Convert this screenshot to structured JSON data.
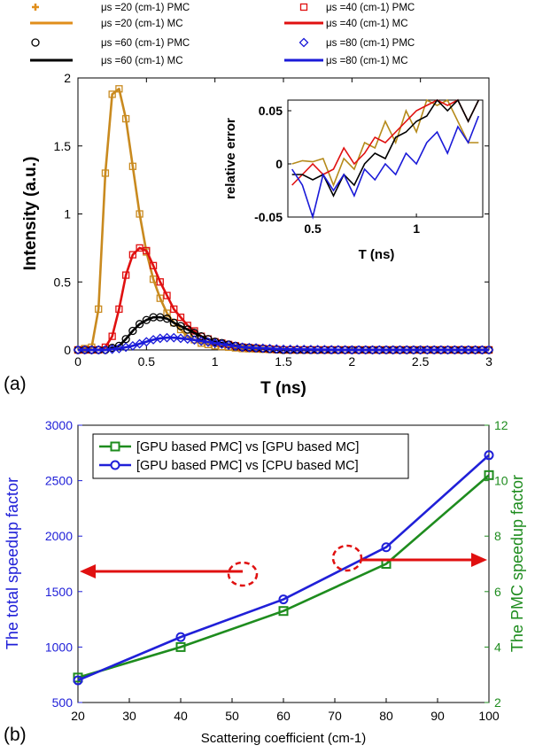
{
  "panel_labels": {
    "a": "(a)",
    "b": "(b)"
  },
  "legend_a": [
    {
      "label": "μs =20 (cm-1) PMC",
      "color": "#e08e1b",
      "marker": "plus"
    },
    {
      "label": "μs =20 (cm-1) MC",
      "color": "#e08e1b",
      "marker": "line"
    },
    {
      "label": "μs =40 (cm-1) PMC",
      "color": "#e01010",
      "marker": "square"
    },
    {
      "label": "μs =40 (cm-1) MC",
      "color": "#e01010",
      "marker": "line"
    },
    {
      "label": "μs =60 (cm-1) PMC",
      "color": "#000000",
      "marker": "circle"
    },
    {
      "label": "μs =60 (cm-1) MC",
      "color": "#000000",
      "marker": "line"
    },
    {
      "label": "μs =80 (cm-1) PMC",
      "color": "#1a1ad8",
      "marker": "diamond"
    },
    {
      "label": "μs =80 (cm-1) MC",
      "color": "#1a1ad8",
      "marker": "line"
    }
  ],
  "chart_data": [
    {
      "type": "line",
      "xlabel": "T (ns)",
      "ylabel": "Intensity (a.u.)",
      "xlim": [
        0,
        3
      ],
      "ylim": [
        0,
        2
      ],
      "x_ticks": [
        "0",
        "0.5",
        "1",
        "1.5",
        "2",
        "2.5",
        "3"
      ],
      "y_ticks": [
        "0",
        "0.5",
        "1",
        "1.5",
        "2"
      ],
      "series": [
        {
          "name": "μs =20 (cm-1)",
          "color": "#c98a1f",
          "x": [
            0,
            0.1,
            0.15,
            0.2,
            0.25,
            0.3,
            0.35,
            0.4,
            0.45,
            0.5,
            0.55,
            0.6,
            0.65,
            0.7,
            0.8,
            0.9,
            1.0,
            1.2,
            1.5,
            2.0,
            2.5,
            3.0
          ],
          "y": [
            0,
            0.02,
            0.3,
            1.3,
            1.88,
            1.92,
            1.7,
            1.35,
            1.0,
            0.72,
            0.52,
            0.38,
            0.27,
            0.2,
            0.1,
            0.05,
            0.03,
            0.01,
            0,
            0,
            0,
            0
          ]
        },
        {
          "name": "μs =40 (cm-1)",
          "color": "#e01010",
          "x": [
            0,
            0.15,
            0.2,
            0.25,
            0.3,
            0.35,
            0.4,
            0.45,
            0.5,
            0.55,
            0.6,
            0.65,
            0.7,
            0.8,
            0.9,
            1.0,
            1.2,
            1.5,
            2.0,
            2.5,
            3.0
          ],
          "y": [
            0,
            0.0,
            0.02,
            0.1,
            0.3,
            0.55,
            0.7,
            0.75,
            0.73,
            0.62,
            0.5,
            0.4,
            0.3,
            0.18,
            0.1,
            0.06,
            0.02,
            0,
            0,
            0,
            0
          ]
        },
        {
          "name": "μs =60 (cm-1)",
          "color": "#000000",
          "x": [
            0,
            0.2,
            0.3,
            0.35,
            0.4,
            0.45,
            0.5,
            0.55,
            0.6,
            0.65,
            0.7,
            0.8,
            0.9,
            1.0,
            1.1,
            1.2,
            1.5,
            2.0,
            2.5,
            3.0
          ],
          "y": [
            0,
            0.0,
            0.03,
            0.08,
            0.14,
            0.19,
            0.22,
            0.24,
            0.24,
            0.23,
            0.2,
            0.15,
            0.1,
            0.06,
            0.04,
            0.02,
            0,
            0,
            0,
            0
          ]
        },
        {
          "name": "μs =80 (cm-1)",
          "color": "#1a1ad8",
          "x": [
            0,
            0.2,
            0.3,
            0.4,
            0.5,
            0.55,
            0.6,
            0.65,
            0.7,
            0.8,
            0.9,
            1.0,
            1.1,
            1.2,
            1.5,
            2.0,
            2.5,
            3.0
          ],
          "y": [
            0,
            0.0,
            0.01,
            0.03,
            0.06,
            0.075,
            0.085,
            0.09,
            0.09,
            0.08,
            0.065,
            0.05,
            0.035,
            0.02,
            0.005,
            0,
            0,
            0
          ]
        }
      ]
    },
    {
      "type": "line",
      "xlabel": "T (ns)",
      "ylabel": "relative error",
      "xlim": [
        0.38,
        1.32
      ],
      "ylim": [
        -0.05,
        0.06
      ],
      "x_ticks": [
        "0.5",
        "1"
      ],
      "y_ticks": [
        "0.05",
        "0",
        "-0.05"
      ],
      "series": [
        {
          "name": "μs =20 (cm-1)",
          "color": "#b58a1a",
          "x": [
            0.4,
            0.45,
            0.5,
            0.55,
            0.6,
            0.65,
            0.7,
            0.75,
            0.8,
            0.85,
            0.9,
            0.95,
            1.0,
            1.05,
            1.1,
            1.15,
            1.2,
            1.25,
            1.3
          ],
          "y": [
            0.0,
            0.003,
            0.002,
            0.005,
            -0.02,
            0.005,
            -0.005,
            0.02,
            0.015,
            0.04,
            0.02,
            0.05,
            0.03,
            0.06,
            0.055,
            0.06,
            0.04,
            0.02,
            0.02
          ]
        },
        {
          "name": "μs =40 (cm-1)",
          "color": "#e01010",
          "x": [
            0.4,
            0.45,
            0.5,
            0.55,
            0.6,
            0.65,
            0.7,
            0.75,
            0.8,
            0.85,
            0.9,
            0.95,
            1.0,
            1.05,
            1.1,
            1.15,
            1.2,
            1.25,
            1.3
          ],
          "y": [
            -0.02,
            -0.01,
            0.0,
            -0.01,
            -0.005,
            0.015,
            0.0,
            0.01,
            0.025,
            0.02,
            0.03,
            0.04,
            0.05,
            0.055,
            0.06,
            0.055,
            0.06,
            0.04,
            0.06
          ]
        },
        {
          "name": "μs =60 (cm-1)",
          "color": "#000000",
          "x": [
            0.4,
            0.45,
            0.5,
            0.55,
            0.6,
            0.65,
            0.7,
            0.75,
            0.8,
            0.85,
            0.9,
            0.95,
            1.0,
            1.05,
            1.1,
            1.15,
            1.2,
            1.25,
            1.3
          ],
          "y": [
            -0.01,
            -0.01,
            -0.015,
            -0.01,
            -0.03,
            -0.01,
            -0.02,
            0.0,
            0.01,
            0.005,
            0.025,
            0.03,
            0.04,
            0.045,
            0.06,
            0.05,
            0.06,
            0.04,
            0.06
          ]
        },
        {
          "name": "μs =80 (cm-1)",
          "color": "#1a1ad8",
          "x": [
            0.4,
            0.45,
            0.5,
            0.55,
            0.6,
            0.65,
            0.7,
            0.75,
            0.8,
            0.85,
            0.9,
            0.95,
            1.0,
            1.05,
            1.1,
            1.15,
            1.2,
            1.25,
            1.3
          ],
          "y": [
            -0.005,
            -0.02,
            -0.05,
            -0.01,
            -0.025,
            -0.01,
            -0.03,
            -0.005,
            -0.015,
            0.0,
            -0.01,
            0.01,
            0.0,
            0.02,
            0.03,
            0.01,
            0.035,
            0.02,
            0.045
          ]
        }
      ]
    },
    {
      "type": "line",
      "xlabel": "Scattering coefficient (cm-1)",
      "ylabel_left": "The total speedup factor",
      "ylabel_right": "The PMC speedup factor",
      "xlim": [
        20,
        100
      ],
      "ylim_left": [
        500,
        3000
      ],
      "ylim_right": [
        2,
        12
      ],
      "x_ticks": [
        "20",
        "30",
        "40",
        "50",
        "60",
        "70",
        "80",
        "90",
        "100"
      ],
      "y_ticks_left": [
        "500",
        "1000",
        "1500",
        "2000",
        "2500",
        "3000"
      ],
      "y_ticks_right": [
        "2",
        "4",
        "6",
        "8",
        "10",
        "12"
      ],
      "series": [
        {
          "name": "[GPU based PMC] vs [GPU based MC]",
          "axis": "right",
          "color": "#1e8c1e",
          "marker": "square",
          "x": [
            20,
            40,
            60,
            80,
            100
          ],
          "y": [
            2.9,
            4.0,
            5.3,
            7.0,
            10.2
          ]
        },
        {
          "name": "[GPU based PMC] vs [CPU based MC]",
          "axis": "left",
          "color": "#2020d8",
          "marker": "circle",
          "x": [
            20,
            40,
            60,
            80,
            100
          ],
          "y": [
            700,
            1090,
            1430,
            1900,
            2730
          ]
        }
      ]
    }
  ]
}
